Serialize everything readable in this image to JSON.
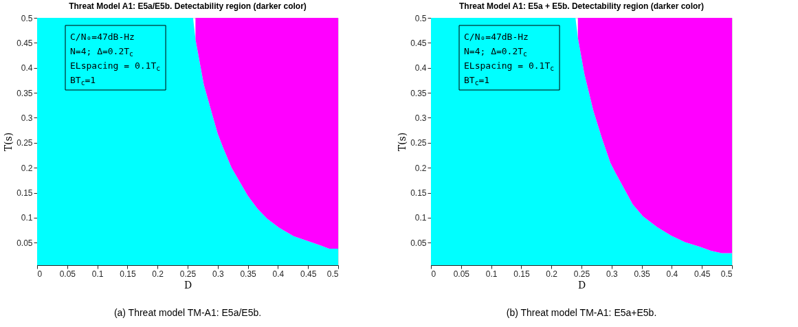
{
  "chart_data": [
    {
      "type": "area",
      "stacked": true,
      "title": "Threat Model A1: E5a/E5b. Detectability region (darker color)",
      "xlabel": "D",
      "ylabel": "T(s)",
      "x": [
        0,
        0.259,
        0.263,
        0.277,
        0.291,
        0.3,
        0.309,
        0.323,
        0.35,
        0.366,
        0.382,
        0.402,
        0.426,
        0.45,
        0.47,
        0.485,
        0.5
      ],
      "series": [
        {
          "color": "#00ffff",
          "values": [
            0.5,
            0.5,
            0.457,
            0.366,
            0.306,
            0.268,
            0.24,
            0.2,
            0.144,
            0.118,
            0.098,
            0.08,
            0.063,
            0.053,
            0.045,
            0.038,
            0.038
          ]
        },
        {
          "color": "#ff00ff",
          "values": [
            null,
            null,
            0.043,
            0.134,
            0.194,
            0.232,
            0.26,
            0.3,
            0.356,
            0.382,
            0.402,
            0.42,
            0.437,
            0.447,
            0.455,
            0.462,
            0.462
          ]
        }
      ],
      "xlim": [
        0,
        0.5
      ],
      "xticks": [
        0,
        0.05,
        0.1,
        0.15,
        0.2,
        0.25,
        0.3,
        0.35,
        0.4,
        0.45,
        0.5
      ],
      "ylim": [
        0.005,
        0.5
      ],
      "yticks": [
        0.05,
        0.1,
        0.15,
        0.2,
        0.25,
        0.3,
        0.35,
        0.4,
        0.45,
        0.5
      ],
      "grid": false,
      "legend": false,
      "annotations": [
        "C/N₀=47dB-Hz",
        "N=4; Δ=0.2T$_{c}$",
        "ELspacing = 0.1T$_{c}$",
        "BT$_{c}$=1",
        "(a)  Threat model TM-A1: E5a/E5b."
      ]
    },
    {
      "type": "area",
      "stacked": true,
      "title": "Threat Model A1: E5a + E5b. Detectability region (darker color)",
      "xlabel": "D",
      "ylabel": "T(s)",
      "x": [
        0,
        0.24,
        0.244,
        0.255,
        0.27,
        0.284,
        0.298,
        0.306,
        0.335,
        0.352,
        0.376,
        0.399,
        0.422,
        0.446,
        0.465,
        0.483,
        0.5
      ],
      "series": [
        {
          "color": "#00ffff",
          "values": [
            0.5,
            0.5,
            0.46,
            0.387,
            0.313,
            0.259,
            0.21,
            0.191,
            0.127,
            0.103,
            0.081,
            0.064,
            0.051,
            0.042,
            0.034,
            0.029,
            0.029
          ]
        },
        {
          "color": "#ff00ff",
          "values": [
            null,
            null,
            0.04,
            0.113,
            0.187,
            0.241,
            0.29,
            0.309,
            0.373,
            0.397,
            0.419,
            0.436,
            0.449,
            0.458,
            0.466,
            0.471,
            0.471
          ]
        }
      ],
      "xlim": [
        0,
        0.5
      ],
      "xticks": [
        0,
        0.05,
        0.1,
        0.15,
        0.2,
        0.25,
        0.3,
        0.35,
        0.4,
        0.45,
        0.5
      ],
      "ylim": [
        0.005,
        0.5
      ],
      "yticks": [
        0.05,
        0.1,
        0.15,
        0.2,
        0.25,
        0.3,
        0.35,
        0.4,
        0.45,
        0.5
      ],
      "grid": false,
      "legend": false,
      "annotations": [
        "C/N₀=47dB-Hz",
        "N=4; Δ=0.2T$_{c}$",
        "ELspacing = 0.1T$_{c}$",
        "BT$_{c}$=1",
        "(b)  Threat model TM-A1: E5a+E5b."
      ]
    }
  ]
}
